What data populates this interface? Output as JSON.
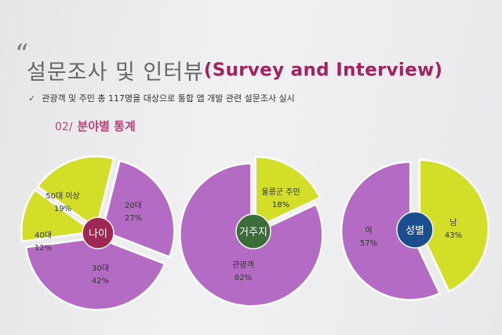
{
  "slide": {
    "quote_mark": "“",
    "title_ko": "설문조사 및 인터뷰",
    "title_en": "(Survey and Interview)",
    "bullet_icon": "✓",
    "bullet_text": "관광객 및 주민 총 117명을 대상으로 통합 앱 개발 관련 설문조사 실시",
    "section_number": "02/",
    "section_label": "분야별 통계"
  },
  "colors": {
    "purple": "#b46bc3",
    "lime": "#d2de28",
    "center_age": "#9f2753",
    "center_residence": "#3a6d37",
    "center_gender": "#1a4e8c",
    "title_accent": "#a3235f"
  },
  "chart_data": [
    {
      "type": "pie",
      "center_label": "나이",
      "slices": [
        {
          "label": "20대",
          "value": 27,
          "value_label": "27%",
          "color": "#b46bc3"
        },
        {
          "label": "30대",
          "value": 42,
          "value_label": "42%",
          "color": "#b46bc3"
        },
        {
          "label": "40대",
          "value": 12,
          "value_label": "12%",
          "color": "#d2de28"
        },
        {
          "label": "50대 이상",
          "value": 19,
          "value_label": "19%",
          "color": "#d2de28"
        }
      ]
    },
    {
      "type": "pie",
      "center_label": "거주지",
      "slices": [
        {
          "label": "울릉군 주민",
          "value": 18,
          "value_label": "18%",
          "color": "#d2de28"
        },
        {
          "label": "관광객",
          "value": 82,
          "value_label": "82%",
          "color": "#b46bc3"
        }
      ]
    },
    {
      "type": "pie",
      "center_label": "성별",
      "slices": [
        {
          "label": "남",
          "value": 43,
          "value_label": "43%",
          "color": "#d2de28"
        },
        {
          "label": "여",
          "value": 57,
          "value_label": "57%",
          "color": "#b46bc3"
        }
      ]
    }
  ]
}
